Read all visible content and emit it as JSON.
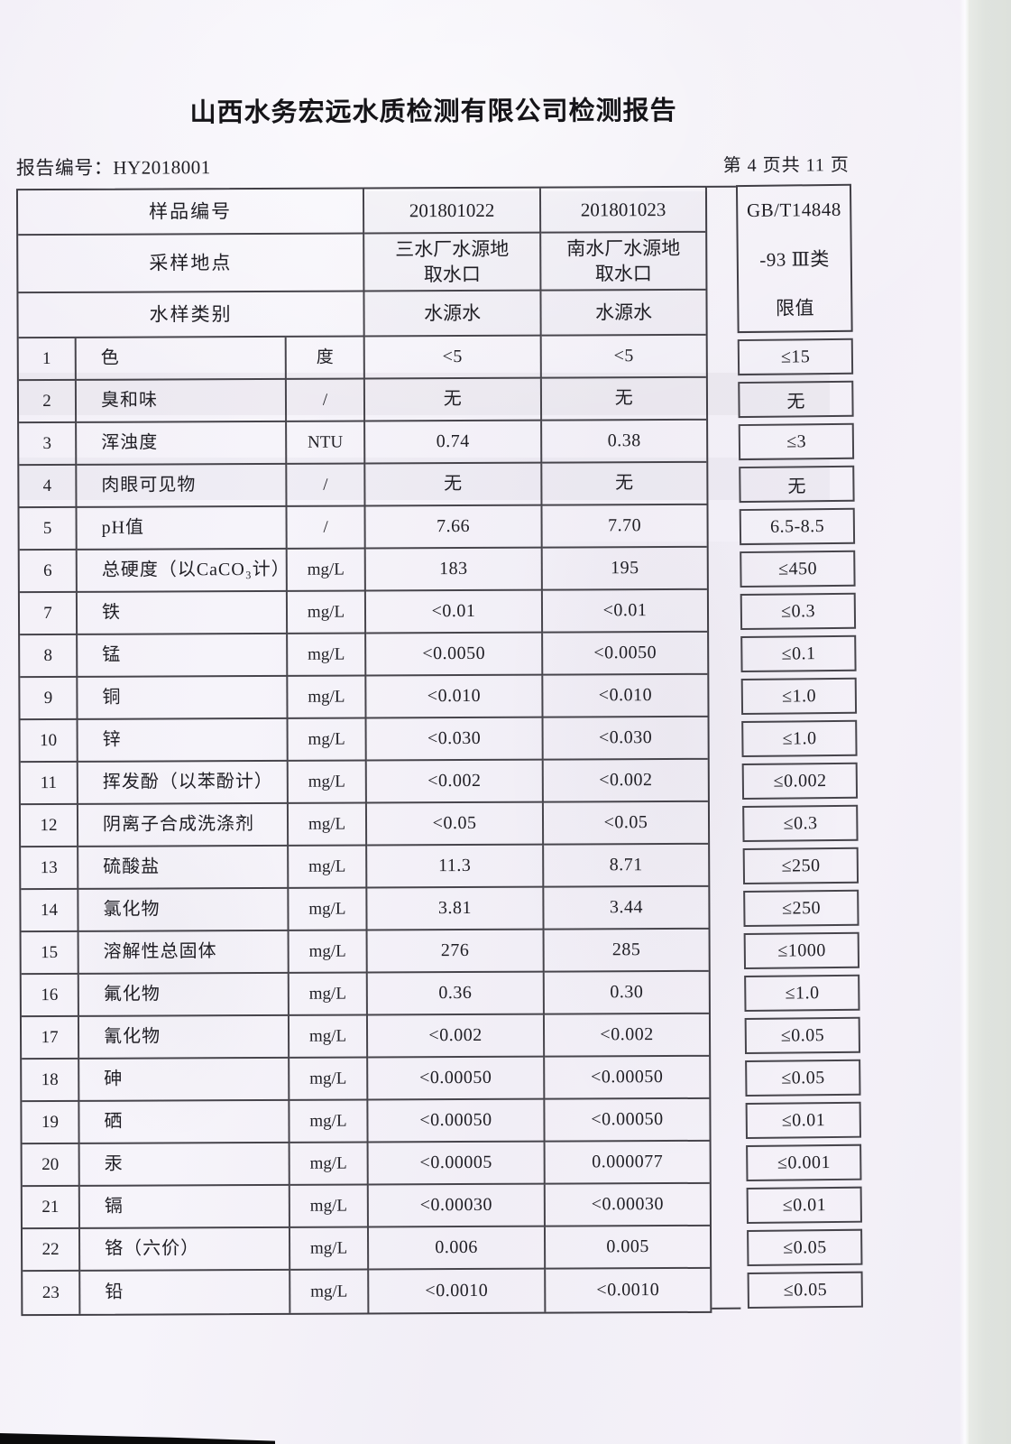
{
  "header": {
    "title": "山西水务宏远水质检测有限公司检测报告",
    "report_no": "报告编号：HY2018001",
    "page_indicator": "第 4 页共 11 页"
  },
  "table": {
    "header": {
      "row1_label": "样品编号",
      "sample_ids": [
        "201801022",
        "201801023"
      ],
      "row2_label": "采样地点",
      "locations": [
        "三水厂水源地取水口",
        "南水厂水源地取水口"
      ],
      "row3_label": "水样类别",
      "sample_types": [
        "水源水",
        "水源水"
      ],
      "limit_header_lines": [
        "GB/T14848",
        "-93 Ⅲ类",
        "限值"
      ]
    },
    "rows": [
      {
        "no": "1",
        "item": "色",
        "unit": "度",
        "v1": "<5",
        "v2": "<5",
        "limit": "≤15"
      },
      {
        "no": "2",
        "item": "臭和味",
        "unit": "/",
        "v1": "无",
        "v2": "无",
        "limit": "无"
      },
      {
        "no": "3",
        "item": "浑浊度",
        "unit": "NTU",
        "v1": "0.74",
        "v2": "0.38",
        "limit": "≤3"
      },
      {
        "no": "4",
        "item": "肉眼可见物",
        "unit": "/",
        "v1": "无",
        "v2": "无",
        "limit": "无"
      },
      {
        "no": "5",
        "item": "pH值",
        "unit": "/",
        "v1": "7.66",
        "v2": "7.70",
        "limit": "6.5-8.5"
      },
      {
        "no": "6",
        "item": "总硬度（以CaCO₃计）",
        "unit": "mg/L",
        "v1": "183",
        "v2": "195",
        "limit": "≤450"
      },
      {
        "no": "7",
        "item": "铁",
        "unit": "mg/L",
        "v1": "<0.01",
        "v2": "<0.01",
        "limit": "≤0.3"
      },
      {
        "no": "8",
        "item": "锰",
        "unit": "mg/L",
        "v1": "<0.0050",
        "v2": "<0.0050",
        "limit": "≤0.1"
      },
      {
        "no": "9",
        "item": "铜",
        "unit": "mg/L",
        "v1": "<0.010",
        "v2": "<0.010",
        "limit": "≤1.0"
      },
      {
        "no": "10",
        "item": "锌",
        "unit": "mg/L",
        "v1": "<0.030",
        "v2": "<0.030",
        "limit": "≤1.0"
      },
      {
        "no": "11",
        "item": "挥发酚（以苯酚计）",
        "unit": "mg/L",
        "v1": "<0.002",
        "v2": "<0.002",
        "limit": "≤0.002"
      },
      {
        "no": "12",
        "item": "阴离子合成洗涤剂",
        "unit": "mg/L",
        "v1": "<0.05",
        "v2": "<0.05",
        "limit": "≤0.3"
      },
      {
        "no": "13",
        "item": "硫酸盐",
        "unit": "mg/L",
        "v1": "11.3",
        "v2": "8.71",
        "limit": "≤250"
      },
      {
        "no": "14",
        "item": "氯化物",
        "unit": "mg/L",
        "v1": "3.81",
        "v2": "3.44",
        "limit": "≤250"
      },
      {
        "no": "15",
        "item": "溶解性总固体",
        "unit": "mg/L",
        "v1": "276",
        "v2": "285",
        "limit": "≤1000"
      },
      {
        "no": "16",
        "item": "氟化物",
        "unit": "mg/L",
        "v1": "0.36",
        "v2": "0.30",
        "limit": "≤1.0"
      },
      {
        "no": "17",
        "item": "氰化物",
        "unit": "mg/L",
        "v1": "<0.002",
        "v2": "<0.002",
        "limit": "≤0.05"
      },
      {
        "no": "18",
        "item": "砷",
        "unit": "mg/L",
        "v1": "<0.00050",
        "v2": "<0.00050",
        "limit": "≤0.05"
      },
      {
        "no": "19",
        "item": "硒",
        "unit": "mg/L",
        "v1": "<0.00050",
        "v2": "<0.00050",
        "limit": "≤0.01"
      },
      {
        "no": "20",
        "item": "汞",
        "unit": "mg/L",
        "v1": "<0.00005",
        "v2": "0.000077",
        "limit": "≤0.001"
      },
      {
        "no": "21",
        "item": "镉",
        "unit": "mg/L",
        "v1": "<0.00030",
        "v2": "<0.00030",
        "limit": "≤0.01"
      },
      {
        "no": "22",
        "item": "铬（六价）",
        "unit": "mg/L",
        "v1": "0.006",
        "v2": "0.005",
        "limit": "≤0.05"
      },
      {
        "no": "23",
        "item": "铅",
        "unit": "mg/L",
        "v1": "<0.0010",
        "v2": "<0.0010",
        "limit": "≤0.05"
      }
    ]
  },
  "colors": {
    "paper": "#f3f0f7",
    "table_line": "#47454c",
    "text": "#1f1e24",
    "scanner_band": "#dfe3de",
    "scanner_bar": "#0b0b0c"
  }
}
